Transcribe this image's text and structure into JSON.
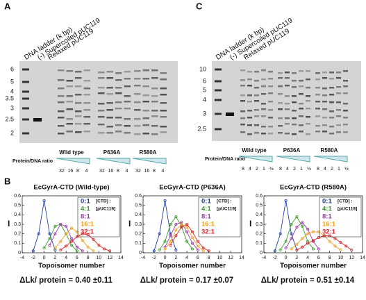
{
  "panels": [
    "A",
    "B",
    "C"
  ],
  "gels": [
    {
      "lanes": [
        "DNA ladder (k bp)",
        "(-) Supercoiled pUC119",
        "Relaxed pUC119"
      ],
      "ladder": [
        "6",
        "5",
        "4",
        "3.5",
        "3",
        "2.5",
        "2"
      ],
      "groups": [
        "Wild type",
        "P636A",
        "R580A"
      ],
      "ratio_label": "Protein/DNA ratio",
      "ratios": [
        "32",
        "16",
        "8",
        "4"
      ]
    },
    {
      "lanes": [
        "DNA ladder (k bp)",
        "(-) Supercoiled pUC119",
        "Relaxed pUC119"
      ],
      "ladder": [
        "10",
        "6",
        "5",
        "4",
        "3",
        "2.5"
      ],
      "groups": [
        "Wild type",
        "P636A",
        "R580A"
      ],
      "ratio_label": "Protein/DNA ratio",
      "ratios": [
        "8",
        "4",
        "2",
        "1",
        "½"
      ]
    }
  ],
  "chart_data": [
    {
      "type": "line",
      "title": "EcGyrA-CTD (Wild-type)",
      "x_label": "Topoisomer number",
      "y_label": "I",
      "legend_notes": [
        "[CTD] :",
        "[pUC119]"
      ],
      "annotation": "ΔLk/ protein = 0.40 ±0.11",
      "xlim": [
        -4,
        14
      ],
      "xticks": [
        -4,
        -2,
        0,
        2,
        4,
        6,
        8,
        10,
        12,
        14
      ],
      "ylim": [
        0,
        0.6
      ],
      "yticks": [
        0,
        0.1,
        0.2,
        0.3,
        0.4,
        0.5,
        0.6
      ],
      "x": [
        -2,
        -1,
        0,
        1,
        2,
        3,
        4,
        5,
        6,
        7,
        8,
        9,
        10,
        11,
        12
      ],
      "series": [
        {
          "name": "0:1",
          "color": "#1f3f9f",
          "values": [
            0.02,
            0.2,
            0.55,
            0.2,
            0.03,
            null,
            null,
            null,
            null,
            null,
            null,
            null,
            null,
            null,
            null
          ]
        },
        {
          "name": "4:1",
          "color": "#3a9a2a",
          "values": [
            null,
            null,
            0.05,
            0.15,
            0.28,
            0.3,
            0.2,
            0.08,
            0.02,
            null,
            null,
            null,
            null,
            null,
            null
          ]
        },
        {
          "name": "8:1",
          "color": "#9a3aa8",
          "values": [
            null,
            null,
            null,
            0.08,
            0.2,
            0.3,
            0.28,
            0.15,
            0.06,
            0.02,
            null,
            null,
            null,
            null,
            null
          ]
        },
        {
          "name": "16:1",
          "color": "#f0a020",
          "values": [
            null,
            null,
            null,
            null,
            0.05,
            0.12,
            0.2,
            0.26,
            0.22,
            0.13,
            0.06,
            0.02,
            null,
            null,
            null
          ]
        },
        {
          "name": "32:1",
          "color": "#d8262a",
          "values": [
            null,
            null,
            null,
            null,
            null,
            0.03,
            0.07,
            0.12,
            0.17,
            0.2,
            0.19,
            0.14,
            0.08,
            0.04,
            0.02
          ]
        }
      ]
    },
    {
      "type": "line",
      "title": "EcGyrA-CTD (P636A)",
      "x_label": "Topoisomer number",
      "y_label": "I",
      "legend_notes": [
        "[CTD] :",
        "[pUC119]"
      ],
      "annotation": "ΔLk/ protein = 0.17 ±0.07",
      "xlim": [
        -4,
        14
      ],
      "xticks": [
        -4,
        -2,
        0,
        2,
        4,
        6,
        8,
        10,
        12,
        14
      ],
      "ylim": [
        0,
        0.6
      ],
      "yticks": [
        0,
        0.1,
        0.2,
        0.3,
        0.4,
        0.5,
        0.6
      ],
      "x": [
        -2,
        -1,
        0,
        1,
        2,
        3,
        4,
        5,
        6,
        7,
        8,
        9,
        10,
        11,
        12
      ],
      "series": [
        {
          "name": "0:1",
          "color": "#1f3f9f",
          "values": [
            0.02,
            0.2,
            0.55,
            0.2,
            0.03,
            null,
            null,
            null,
            null,
            null,
            null,
            null,
            null,
            null,
            null
          ]
        },
        {
          "name": "4:1",
          "color": "#3a9a2a",
          "values": [
            null,
            0.03,
            0.12,
            0.3,
            0.38,
            0.28,
            0.12,
            0.04,
            null,
            null,
            null,
            null,
            null,
            null,
            null
          ]
        },
        {
          "name": "8:1",
          "color": "#9a3aa8",
          "values": [
            null,
            null,
            0.06,
            0.18,
            0.3,
            0.32,
            0.22,
            0.1,
            0.03,
            null,
            null,
            null,
            null,
            null,
            null
          ]
        },
        {
          "name": "16:1",
          "color": "#f0a020",
          "values": [
            null,
            null,
            0.04,
            0.12,
            0.24,
            0.3,
            0.27,
            0.16,
            0.07,
            0.02,
            null,
            null,
            null,
            null,
            null
          ]
        },
        {
          "name": "32:1",
          "color": "#d8262a",
          "values": [
            null,
            null,
            null,
            0.08,
            0.18,
            0.27,
            0.3,
            0.22,
            0.12,
            0.05,
            0.02,
            null,
            null,
            null,
            null
          ]
        }
      ]
    },
    {
      "type": "line",
      "title": "EcGyrA-CTD (R580A)",
      "x_label": "Topoisomer number",
      "y_label": "I",
      "legend_notes": [
        "[CTD] :",
        "[pUC119]"
      ],
      "annotation": "ΔLk/ protein = 0.51 ±0.14",
      "xlim": [
        -4,
        14
      ],
      "xticks": [
        -4,
        -2,
        0,
        2,
        4,
        6,
        8,
        10,
        12,
        14
      ],
      "ylim": [
        0,
        0.6
      ],
      "yticks": [
        0,
        0.1,
        0.2,
        0.3,
        0.4,
        0.5,
        0.6
      ],
      "x": [
        -2,
        -1,
        0,
        1,
        2,
        3,
        4,
        5,
        6,
        7,
        8,
        9,
        10,
        11,
        12
      ],
      "series": [
        {
          "name": "0:1",
          "color": "#1f3f9f",
          "values": [
            0.02,
            0.2,
            0.55,
            0.2,
            0.03,
            null,
            null,
            null,
            null,
            null,
            null,
            null,
            null,
            null,
            null
          ]
        },
        {
          "name": "4:1",
          "color": "#3a9a2a",
          "values": [
            null,
            0.03,
            0.12,
            0.3,
            0.38,
            0.28,
            0.12,
            0.04,
            null,
            null,
            null,
            null,
            null,
            null,
            null
          ]
        },
        {
          "name": "8:1",
          "color": "#9a3aa8",
          "values": [
            null,
            null,
            0.05,
            0.15,
            0.27,
            0.32,
            0.25,
            0.12,
            0.04,
            null,
            null,
            null,
            null,
            null,
            null
          ]
        },
        {
          "name": "16:1",
          "color": "#f0a020",
          "values": [
            null,
            null,
            null,
            0.04,
            0.09,
            0.15,
            0.2,
            0.22,
            0.22,
            0.18,
            0.12,
            0.07,
            0.03,
            null,
            null
          ]
        },
        {
          "name": "32:1",
          "color": "#d8262a",
          "values": [
            null,
            null,
            null,
            null,
            0.03,
            0.06,
            0.1,
            0.13,
            0.16,
            0.18,
            0.18,
            0.15,
            0.11,
            0.07,
            0.03
          ]
        }
      ]
    }
  ]
}
